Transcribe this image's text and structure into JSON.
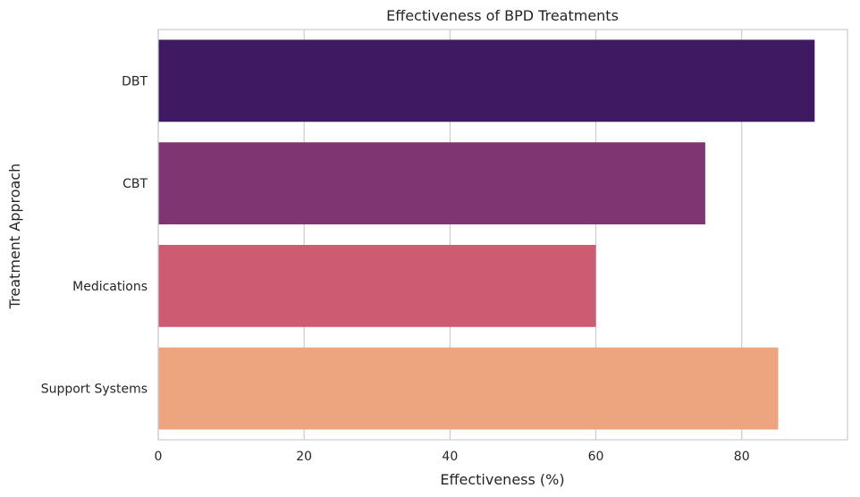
{
  "chart_data": {
    "type": "bar",
    "orientation": "horizontal",
    "title": "Effectiveness of BPD Treatments",
    "xlabel": "Effectiveness (%)",
    "ylabel": "Treatment Approach",
    "categories": [
      "DBT",
      "CBT",
      "Medications",
      "Support Systems"
    ],
    "values": [
      90,
      75,
      60,
      85
    ],
    "colors": [
      "#3f1a63",
      "#803573",
      "#cd5c72",
      "#eca57e"
    ],
    "xlim": [
      0,
      94.5
    ],
    "xticks": [
      0,
      20,
      40,
      60,
      80
    ],
    "xtick_labels": [
      "0",
      "20",
      "40",
      "60",
      "80"
    ],
    "grid": "x",
    "legend": "none"
  },
  "style": {
    "gridline_color": "#cccccc",
    "spine_color": "#cccccc",
    "text_color": "#262626",
    "background": "#ffffff"
  }
}
